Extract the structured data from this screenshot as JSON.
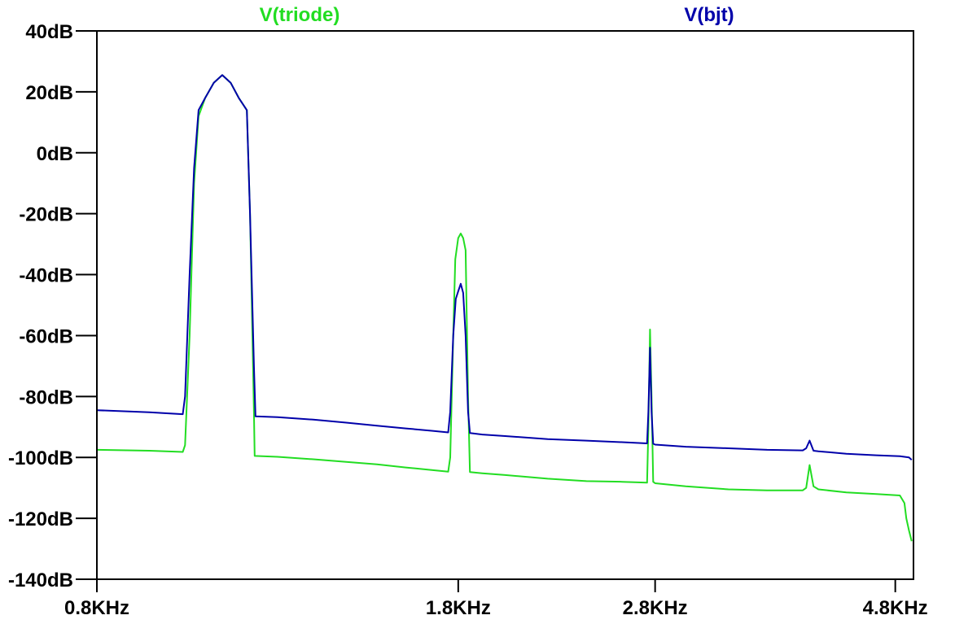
{
  "chart_data": {
    "type": "line",
    "title": "",
    "xlabel": "",
    "ylabel": "",
    "x_scale": "log",
    "xlim": [
      800,
      5000
    ],
    "ylim": [
      -140,
      40
    ],
    "grid": false,
    "legend": "top",
    "y_ticks": [
      {
        "value": 40,
        "label": "40dB"
      },
      {
        "value": 20,
        "label": "20dB"
      },
      {
        "value": 0,
        "label": "0dB"
      },
      {
        "value": -20,
        "label": "-20dB"
      },
      {
        "value": -40,
        "label": "-40dB"
      },
      {
        "value": -60,
        "label": "-60dB"
      },
      {
        "value": -80,
        "label": "-80dB"
      },
      {
        "value": -100,
        "label": "-100dB"
      },
      {
        "value": -120,
        "label": "-120dB"
      },
      {
        "value": -140,
        "label": "-140dB"
      }
    ],
    "x_ticks": [
      {
        "value": 800,
        "label": "0.8KHz"
      },
      {
        "value": 1800,
        "label": "1.8KHz"
      },
      {
        "value": 2800,
        "label": "2.8KHz"
      },
      {
        "value": 4800,
        "label": "4.8KHz"
      }
    ],
    "series": [
      {
        "name": "V(triode)",
        "color": "#22dd22",
        "points": [
          [
            800,
            -97.5
          ],
          [
            900,
            -97.8
          ],
          [
            970,
            -98.2
          ],
          [
            975,
            -96
          ],
          [
            985,
            -60
          ],
          [
            995,
            -10
          ],
          [
            1005,
            12
          ],
          [
            1020,
            18
          ],
          [
            1040,
            23
          ],
          [
            1060,
            25.5
          ],
          [
            1080,
            23
          ],
          [
            1100,
            18
          ],
          [
            1120,
            14
          ],
          [
            1128,
            -20
          ],
          [
            1138,
            -85
          ],
          [
            1140,
            -99.5
          ],
          [
            1200,
            -99.8
          ],
          [
            1300,
            -100.6
          ],
          [
            1400,
            -101.5
          ],
          [
            1500,
            -102.3
          ],
          [
            1600,
            -103.3
          ],
          [
            1700,
            -104.2
          ],
          [
            1760,
            -104.7
          ],
          [
            1768,
            -100
          ],
          [
            1780,
            -60
          ],
          [
            1788,
            -35
          ],
          [
            1800,
            -28
          ],
          [
            1810,
            -26.5
          ],
          [
            1820,
            -28
          ],
          [
            1830,
            -32
          ],
          [
            1840,
            -80
          ],
          [
            1848,
            -104.8
          ],
          [
            1900,
            -105.2
          ],
          [
            2000,
            -105.8
          ],
          [
            2200,
            -107
          ],
          [
            2400,
            -107.8
          ],
          [
            2600,
            -108
          ],
          [
            2750,
            -108.3
          ],
          [
            2758,
            -90
          ],
          [
            2768,
            -58
          ],
          [
            2778,
            -80
          ],
          [
            2788,
            -108
          ],
          [
            2800,
            -108.5
          ],
          [
            3000,
            -109.5
          ],
          [
            3300,
            -110.5
          ],
          [
            3600,
            -110.8
          ],
          [
            3900,
            -110.8
          ],
          [
            3930,
            -110
          ],
          [
            3960,
            -102.5
          ],
          [
            3995,
            -109.5
          ],
          [
            4040,
            -110.5
          ],
          [
            4300,
            -111.5
          ],
          [
            4600,
            -112
          ],
          [
            4850,
            -112.5
          ],
          [
            4900,
            -115
          ],
          [
            4920,
            -120
          ],
          [
            4950,
            -124
          ],
          [
            4980,
            -127.5
          ]
        ]
      },
      {
        "name": "V(bjt)",
        "color": "#0000aa",
        "points": [
          [
            800,
            -84.5
          ],
          [
            900,
            -85.2
          ],
          [
            970,
            -85.8
          ],
          [
            975,
            -80
          ],
          [
            985,
            -40
          ],
          [
            995,
            -5
          ],
          [
            1005,
            14
          ],
          [
            1020,
            18
          ],
          [
            1040,
            23
          ],
          [
            1060,
            25.5
          ],
          [
            1080,
            23
          ],
          [
            1100,
            18
          ],
          [
            1120,
            14
          ],
          [
            1128,
            -20
          ],
          [
            1138,
            -70
          ],
          [
            1142,
            -86.5
          ],
          [
            1200,
            -86.8
          ],
          [
            1300,
            -87.6
          ],
          [
            1400,
            -88.6
          ],
          [
            1500,
            -89.6
          ],
          [
            1600,
            -90.5
          ],
          [
            1700,
            -91.3
          ],
          [
            1760,
            -91.8
          ],
          [
            1768,
            -85
          ],
          [
            1780,
            -60
          ],
          [
            1790,
            -48
          ],
          [
            1800,
            -45.5
          ],
          [
            1810,
            -43
          ],
          [
            1820,
            -46
          ],
          [
            1830,
            -60
          ],
          [
            1840,
            -85
          ],
          [
            1848,
            -92
          ],
          [
            1900,
            -92.5
          ],
          [
            2000,
            -93
          ],
          [
            2200,
            -94
          ],
          [
            2400,
            -94.5
          ],
          [
            2600,
            -95
          ],
          [
            2750,
            -95.4
          ],
          [
            2758,
            -85
          ],
          [
            2768,
            -64
          ],
          [
            2778,
            -85
          ],
          [
            2788,
            -95.5
          ],
          [
            2800,
            -95.8
          ],
          [
            3000,
            -96.5
          ],
          [
            3300,
            -97
          ],
          [
            3600,
            -97.5
          ],
          [
            3900,
            -97.7
          ],
          [
            3930,
            -97
          ],
          [
            3960,
            -94.5
          ],
          [
            3995,
            -97.8
          ],
          [
            4040,
            -98
          ],
          [
            4300,
            -98.8
          ],
          [
            4600,
            -99.3
          ],
          [
            4850,
            -99.6
          ],
          [
            4950,
            -100
          ],
          [
            4980,
            -100.8
          ]
        ]
      }
    ]
  }
}
